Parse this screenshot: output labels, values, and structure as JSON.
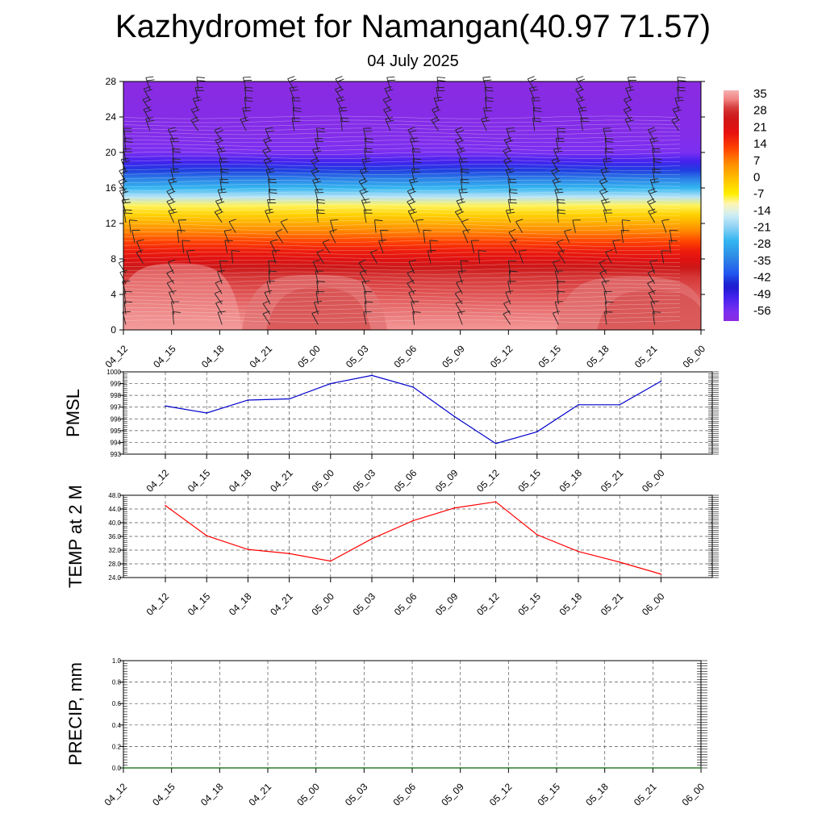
{
  "title": "Kazhydromet for Namangan(40.97 71.57)",
  "subtitle": "04 July 2025",
  "time_labels": [
    "04_12",
    "04_15",
    "04_18",
    "04_21",
    "05_00",
    "05_03",
    "05_06",
    "05_09",
    "05_12",
    "05_15",
    "05_18",
    "05_21",
    "06_00"
  ],
  "chart_data": [
    {
      "type": "heatmap",
      "name": "temperature-height cross-section",
      "y_ticks": [
        0,
        4,
        8,
        12,
        16,
        20,
        24,
        28
      ],
      "ylim": [
        0,
        28
      ],
      "colorbar": {
        "labels": [
          "35",
          "28",
          "21",
          "14",
          "7",
          "0",
          "-7",
          "-14",
          "-21",
          "-28",
          "-35",
          "-42",
          "-49",
          "-56"
        ],
        "range": [
          -60,
          38
        ]
      },
      "temperature_profile_by_height": [
        {
          "h": 0,
          "t": 36
        },
        {
          "h": 4,
          "t": 32
        },
        {
          "h": 6,
          "t": 30
        },
        {
          "h": 7,
          "t": 27
        },
        {
          "h": 8,
          "t": 22
        },
        {
          "h": 9,
          "t": 18
        },
        {
          "h": 10,
          "t": 13
        },
        {
          "h": 11,
          "t": 8
        },
        {
          "h": 12,
          "t": 3
        },
        {
          "h": 13,
          "t": -2
        },
        {
          "h": 14,
          "t": -8
        },
        {
          "h": 15,
          "t": -17
        },
        {
          "h": 16,
          "t": -26
        },
        {
          "h": 17,
          "t": -34
        },
        {
          "h": 18,
          "t": -42
        },
        {
          "h": 19,
          "t": -50
        },
        {
          "h": 20,
          "t": -56
        },
        {
          "h": 21,
          "t": -57
        },
        {
          "h": 22,
          "t": -58
        },
        {
          "h": 28,
          "t": -60
        }
      ],
      "wind_barbs": true
    },
    {
      "type": "line",
      "ylabel": "PMSL",
      "ylim": [
        993,
        1000
      ],
      "y_ticks": [
        993,
        994,
        995,
        996,
        997,
        998,
        999,
        1000
      ],
      "series": [
        {
          "color": "#0000cc",
          "values": [
            997.1,
            996.5,
            997.6,
            997.7,
            999.0,
            999.7,
            998.7,
            996.2,
            993.9,
            994.9,
            997.2,
            997.2,
            999.2
          ]
        }
      ]
    },
    {
      "type": "line",
      "ylabel": "TEMP at 2 M",
      "ylim": [
        24,
        48
      ],
      "y_ticks": [
        "24.0",
        "28.0",
        "32.0",
        "36.0",
        "40.0",
        "44.0",
        "48.0"
      ],
      "series": [
        {
          "color": "#ff0000",
          "values": [
            45.0,
            36.2,
            32.2,
            31.0,
            28.8,
            35.3,
            40.6,
            44.3,
            46.1,
            36.5,
            31.6,
            28.5,
            25.0
          ]
        }
      ]
    },
    {
      "type": "line",
      "ylabel": "PRECIP, mm",
      "ylim": [
        0,
        1
      ],
      "y_ticks": [
        "0.0",
        "0.2",
        "0.4",
        "0.6",
        "0.8",
        "1.0"
      ],
      "series": [
        {
          "color": "#006400",
          "values": [
            0,
            0,
            0,
            0,
            0,
            0,
            0,
            0,
            0,
            0,
            0,
            0,
            0
          ]
        }
      ]
    }
  ]
}
